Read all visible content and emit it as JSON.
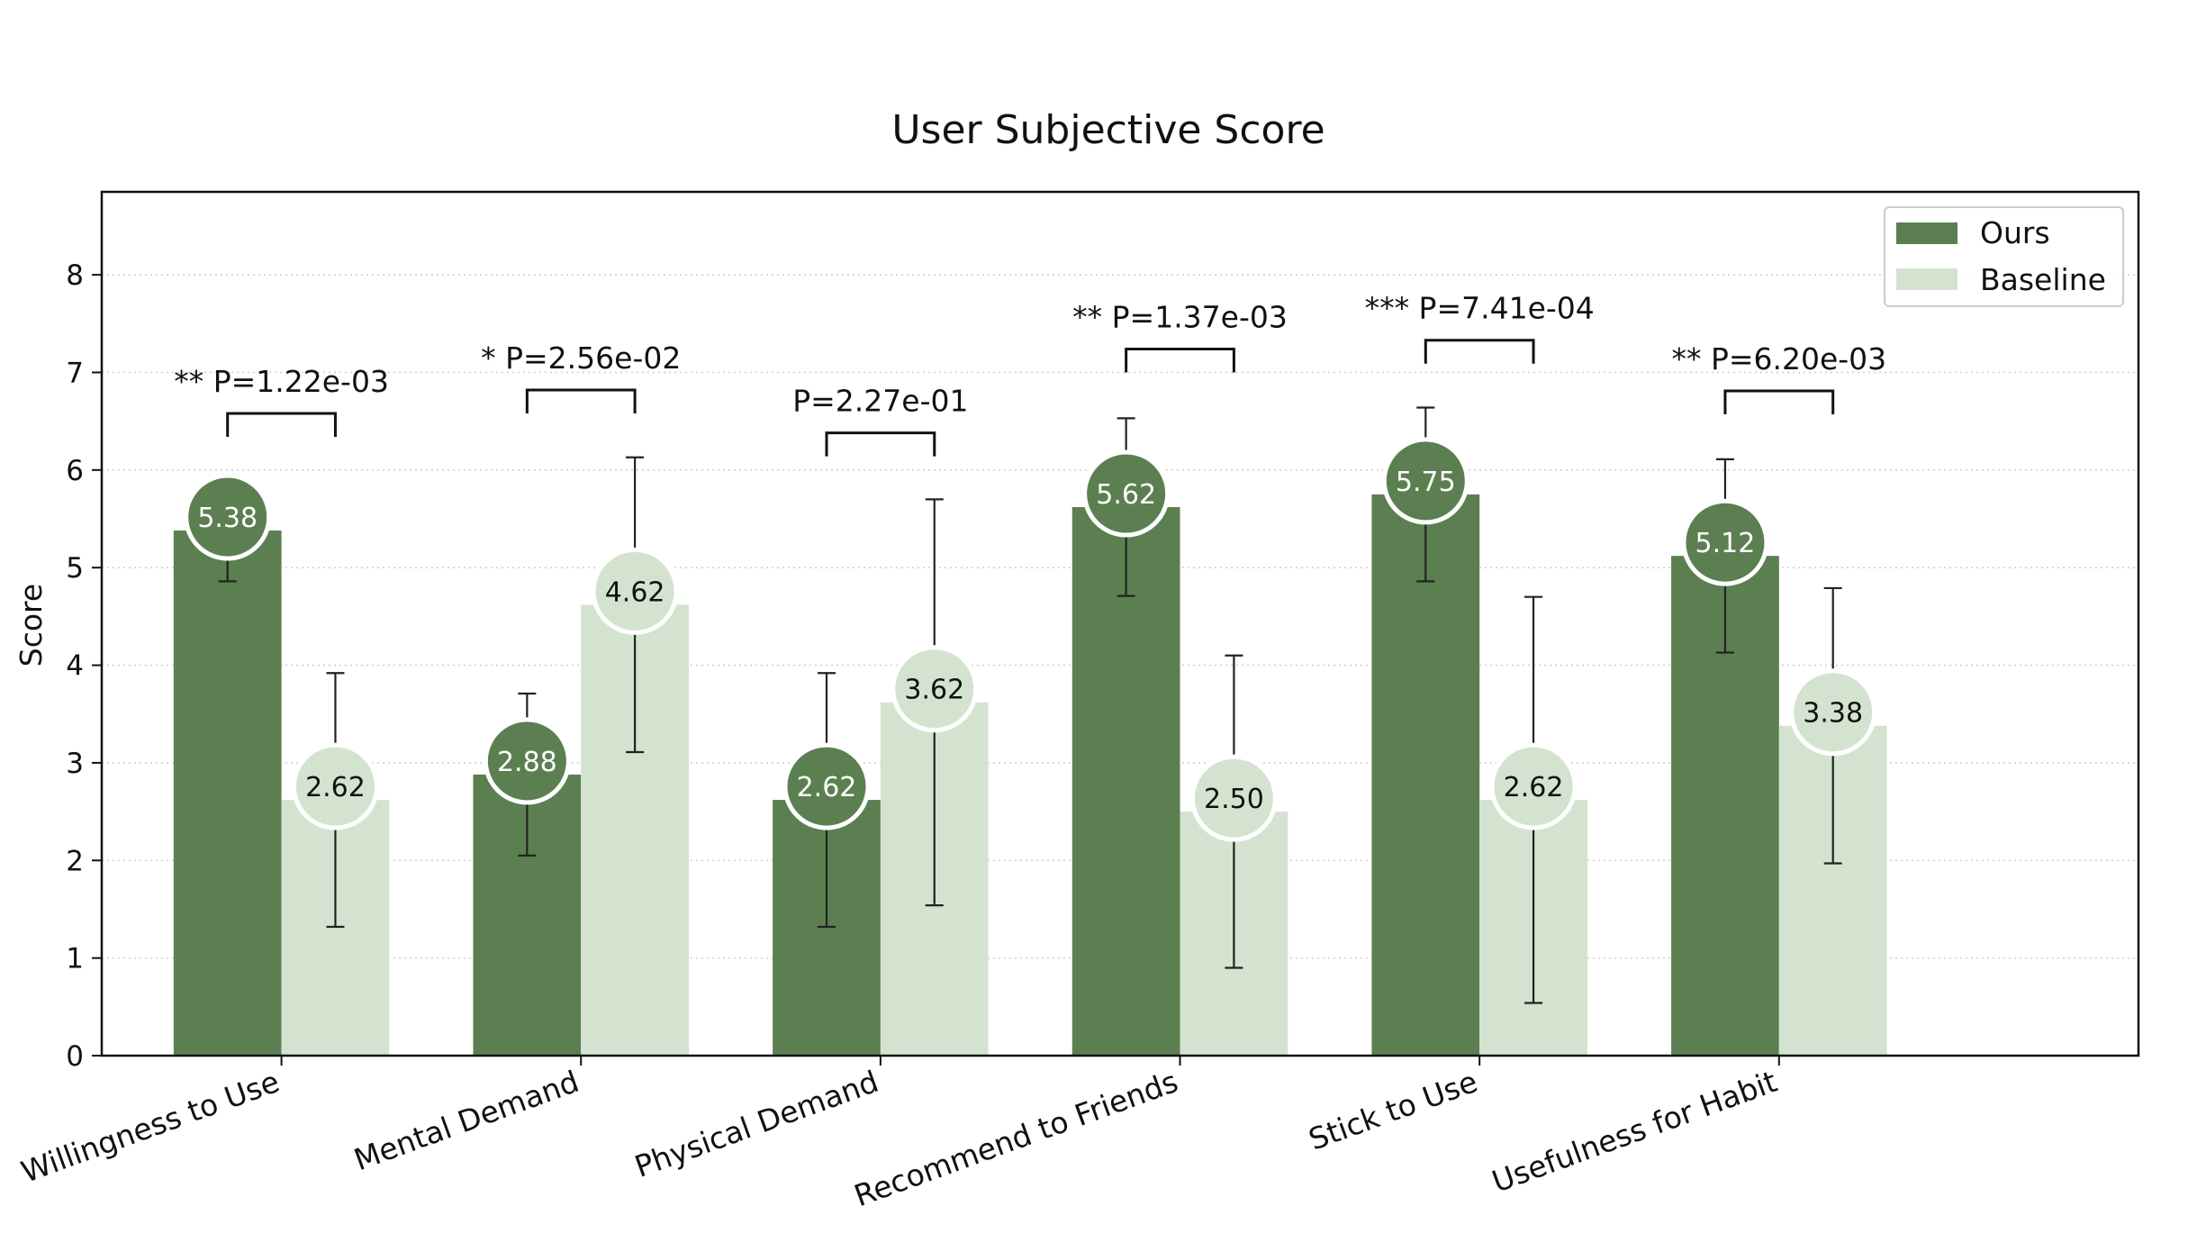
{
  "chart_data": {
    "type": "bar",
    "title": "User Subjective Score",
    "xlabel": "",
    "ylabel": "Score",
    "ylim": [
      0,
      8.85
    ],
    "yticks": [
      0,
      1,
      2,
      3,
      4,
      5,
      6,
      7,
      8
    ],
    "grid": "y-dotted",
    "legend_position": "top-right",
    "categories": [
      "Willingness to Use",
      "Mental Demand",
      "Physical Demand",
      "Recommend to Friends",
      "Stick to Use",
      "Usefulness for Habit"
    ],
    "series": [
      {
        "name": "Ours",
        "color": "#5c7f51",
        "text_color": "#ffffff",
        "values": [
          5.38,
          2.88,
          2.62,
          5.62,
          5.75,
          5.12
        ],
        "labels": [
          "5.38",
          "2.88",
          "2.62",
          "5.62",
          "5.75",
          "5.12"
        ],
        "error": [
          0.52,
          0.83,
          1.3,
          0.91,
          0.89,
          0.99
        ]
      },
      {
        "name": "Baseline",
        "color": "#d4e3cf",
        "text_color": "#111111",
        "values": [
          2.62,
          4.62,
          3.62,
          2.5,
          2.62,
          3.38
        ],
        "labels": [
          "2.62",
          "4.62",
          "3.62",
          "2.50",
          "2.62",
          "3.38"
        ],
        "error": [
          1.3,
          1.51,
          2.08,
          1.6,
          2.08,
          1.41
        ]
      }
    ],
    "significance": [
      {
        "stars": "**",
        "p_value": "P=1.22e-03",
        "label": "** P=1.22e-03",
        "bracket_y": 6.58
      },
      {
        "stars": "*",
        "p_value": "P=2.56e-02",
        "label": "* P=2.56e-02",
        "bracket_y": 6.82
      },
      {
        "stars": "",
        "p_value": "P=2.27e-01",
        "label": "P=2.27e-01",
        "bracket_y": 6.38
      },
      {
        "stars": "**",
        "p_value": "P=1.37e-03",
        "label": "** P=1.37e-03",
        "bracket_y": 7.24
      },
      {
        "stars": "***",
        "p_value": "P=7.41e-04",
        "label": "*** P=7.41e-04",
        "bracket_y": 7.33
      },
      {
        "stars": "**",
        "p_value": "P=6.20e-03",
        "label": "** P=6.20e-03",
        "bracket_y": 6.81
      }
    ]
  }
}
